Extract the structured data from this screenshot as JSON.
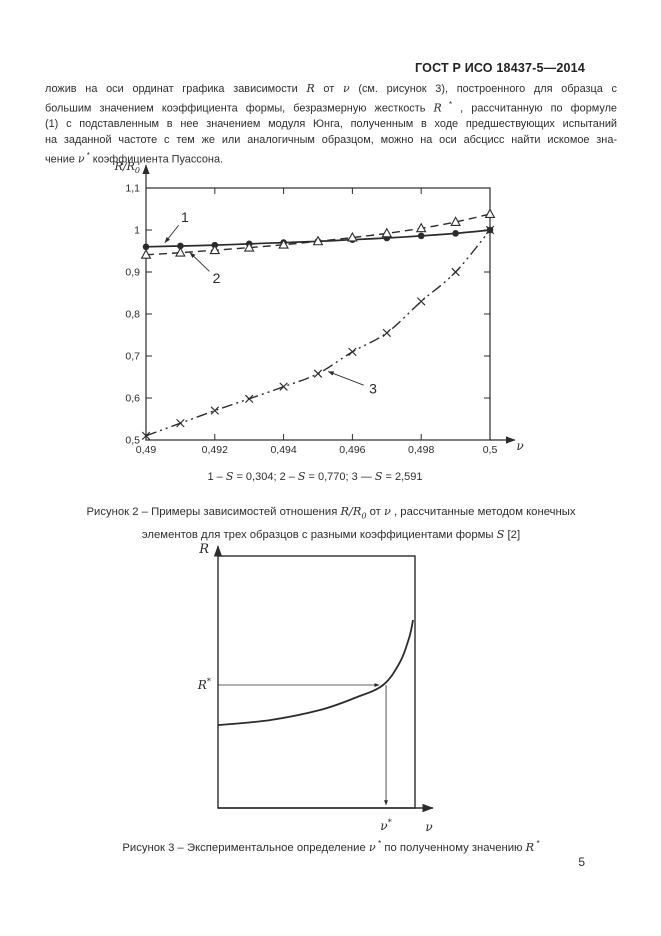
{
  "page": {
    "header": "ГОСТ Р ИСО 18437-5—2014",
    "page_number": "5"
  },
  "paragraph": {
    "lines": [
      [
        {
          "t": "ложив на оси ординат графика зависимости "
        },
        {
          "t": "R",
          "c": "m"
        },
        {
          "t": " от "
        },
        {
          "t": "ν",
          "c": "m"
        },
        {
          "t": " (см. рисунок 3), построенного для образца с"
        }
      ],
      [
        {
          "t": "большим значением коэффициента формы, безразмерную жесткость "
        },
        {
          "t": "R",
          "c": "m"
        },
        {
          "t": " *",
          "c": "sup"
        },
        {
          "t": " , рассчитанную по формуле"
        }
      ],
      [
        {
          "t": "(1) с подставленным в нее значением модуля Юнга, полученным в ходе предшествующих испытаний"
        }
      ],
      [
        {
          "t": "на заданной частоте с тем же или аналогичным образцом, можно на оси абсцисс найти искомое зна-"
        }
      ],
      [
        {
          "t": "чение "
        },
        {
          "t": "ν",
          "c": "m"
        },
        {
          "t": " *",
          "c": "sup"
        },
        {
          "t": " коэффициента Пуассона."
        }
      ]
    ]
  },
  "chart_data": [
    {
      "type": "line",
      "title": "",
      "xlabel": "ν",
      "ylabel": "R/R0",
      "ylabel_main": "R/R",
      "ylabel_sub": "0",
      "xlim": [
        0.49,
        0.5
      ],
      "ylim": [
        0.5,
        1.1
      ],
      "grid": false,
      "frame": true,
      "x": [
        0.49,
        0.491,
        0.492,
        0.493,
        0.494,
        0.495,
        0.496,
        0.497,
        0.498,
        0.499,
        0.5
      ],
      "series": [
        {
          "name": "1",
          "shape_factor": "S = 0,304",
          "style": "solid-circle",
          "values": [
            0.96,
            0.962,
            0.964,
            0.967,
            0.97,
            0.973,
            0.977,
            0.981,
            0.986,
            0.992,
            1.0
          ]
        },
        {
          "name": "2",
          "shape_factor": "S = 0,770",
          "style": "dashed-triangle",
          "values": [
            0.941,
            0.946,
            0.952,
            0.958,
            0.965,
            0.973,
            0.982,
            0.992,
            1.004,
            1.019,
            1.038
          ]
        },
        {
          "name": "3",
          "shape_factor": "S = 2,591",
          "style": "dashdotdot-x",
          "values": [
            0.51,
            0.54,
            0.57,
            0.598,
            0.627,
            0.658,
            0.71,
            0.755,
            0.83,
            0.9,
            1.0
          ]
        }
      ],
      "xticks": [
        {
          "v": 0.49,
          "l": "0,49"
        },
        {
          "v": 0.492,
          "l": "0,492"
        },
        {
          "v": 0.494,
          "l": "0,494"
        },
        {
          "v": 0.496,
          "l": "0,496"
        },
        {
          "v": 0.498,
          "l": "0,498"
        },
        {
          "v": 0.5,
          "l": "0,5"
        }
      ],
      "yticks": [
        {
          "v": 0.5,
          "l": "0,5"
        },
        {
          "v": 0.6,
          "l": "0,6"
        },
        {
          "v": 0.7,
          "l": "0,7"
        },
        {
          "v": 0.8,
          "l": "0,8"
        },
        {
          "v": 0.9,
          "l": "0,9"
        },
        {
          "v": 1.0,
          "l": "1"
        },
        {
          "v": 1.1,
          "l": "1,1"
        }
      ],
      "annotations": [
        {
          "label": "1",
          "tx": 0.49113,
          "ty": 1.03,
          "ax": 0.49055,
          "ay": 0.97
        },
        {
          "label": "2",
          "tx": 0.49205,
          "ty": 0.885,
          "ax": 0.49128,
          "ay": 0.946
        },
        {
          "label": "3",
          "tx": 0.4966,
          "ty": 0.622,
          "ax": 0.4953,
          "ay": 0.663
        }
      ]
    },
    {
      "type": "line",
      "qualitative": true,
      "xlabel": "ν",
      "ylabel": "R",
      "marked_y": "R",
      "marked_y_sup": "*",
      "marked_x": "ν",
      "marked_x_sup": "*",
      "curve_norm": [
        [
          0,
          0.329
        ],
        [
          0.264,
          0.349
        ],
        [
          0.518,
          0.389
        ],
        [
          0.695,
          0.437
        ],
        [
          0.838,
          0.488
        ],
        [
          0.924,
          0.579
        ],
        [
          0.97,
          0.675
        ],
        [
          0.99,
          0.746
        ]
      ],
      "marked_point_norm": [
        0.838,
        0.488
      ],
      "marked_line_x_norm": 0.853
    }
  ],
  "figure2": {
    "subcaption": [
      {
        "t": "1 – "
      },
      {
        "t": "S",
        "c": "m"
      },
      {
        "t": " = 0,304; 2 – "
      },
      {
        "t": "S",
        "c": "m"
      },
      {
        "t": " = 0,770; 3 — "
      },
      {
        "t": "S",
        "c": "m"
      },
      {
        "t": " = 2,591"
      }
    ],
    "caption_line1": [
      {
        "t": "Рисунок 2 – Примеры зависимостей отношения "
      },
      {
        "t": "R",
        "c": "m"
      },
      {
        "t": "/",
        "c": "m"
      },
      {
        "t": "R",
        "c": "m"
      },
      {
        "t": "0",
        "c": "m sub"
      },
      {
        "t": " от "
      },
      {
        "t": "ν",
        "c": "m"
      },
      {
        "t": " , рассчитанные методом конечных"
      }
    ],
    "caption_line2": [
      {
        "t": "элементов для трех образцов с разными коэффициентами формы "
      },
      {
        "t": "S",
        "c": "m"
      },
      {
        "t": " [2]"
      }
    ]
  },
  "figure3": {
    "caption": [
      {
        "t": "Рисунок 3 – Экспериментальное определение "
      },
      {
        "t": "ν",
        "c": "m"
      },
      {
        "t": " *",
        "c": "sup"
      },
      {
        "t": " по полученному значению "
      },
      {
        "t": "R",
        "c": "m"
      },
      {
        "t": " *",
        "c": "sup"
      }
    ]
  },
  "colors": {
    "ink": "#2b2b2b",
    "paper": "#ffffff"
  }
}
